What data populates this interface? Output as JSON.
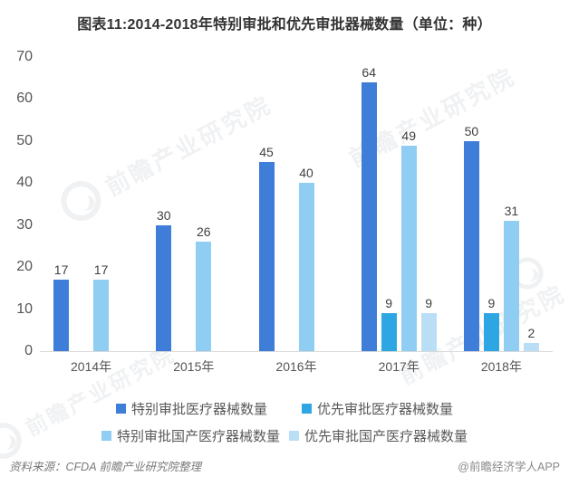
{
  "title": "图表11:2014-2018年特别审批和优先审批器械数量（单位：种）",
  "watermark_text": "前瞻产业研究院",
  "footer": {
    "source": "资料来源：CFDA 前瞻产业研究院整理",
    "credit": "@前瞻经济学人APP"
  },
  "colors": {
    "title_text": "#333333",
    "axis_text": "#555555",
    "value_text": "#404040",
    "legend_text": "#595959",
    "axis_line": "#d9d9d9"
  },
  "chart_data": {
    "type": "bar",
    "title": "图表11:2014-2018年特别审批和优先审批器械数量（单位：种）",
    "unit": "种",
    "categories": [
      "2014年",
      "2015年",
      "2016年",
      "2017年",
      "2018年"
    ],
    "series": [
      {
        "name": "特别审批医疗器械数量",
        "color": "#3E7DD8",
        "values": [
          17,
          30,
          45,
          64,
          50
        ]
      },
      {
        "name": "优先审批医疗器械数量",
        "color": "#2FA6E4",
        "values": [
          null,
          null,
          null,
          9,
          9
        ]
      },
      {
        "name": "特别审批国产医疗器械数量",
        "color": "#8FCDF2",
        "values": [
          17,
          26,
          40,
          49,
          31
        ]
      },
      {
        "name": "优先审批国产医疗器械数量",
        "color": "#B9DEF5",
        "values": [
          null,
          null,
          null,
          9,
          2
        ]
      }
    ],
    "ylim": [
      0,
      70
    ],
    "yticks": [
      0,
      10,
      20,
      30,
      40,
      50,
      60,
      70
    ],
    "grid": false,
    "legend_position": "bottom",
    "legend_rows": [
      [
        0,
        1
      ],
      [
        2,
        3
      ]
    ]
  }
}
